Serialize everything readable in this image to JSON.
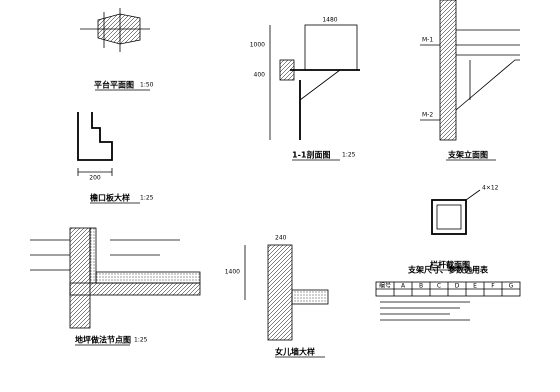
{
  "drawings": [
    {
      "title": "平台平面图",
      "scale": "1:50"
    },
    {
      "title": "檐口板大样",
      "scale": "1:25",
      "labels": [
        "200"
      ]
    },
    {
      "title": "1-1剖面图",
      "scale": "1:25",
      "labels": [
        "1000",
        "400",
        "1480"
      ]
    },
    {
      "title": "支架立面图",
      "labels": [
        "M-1",
        "M-2"
      ]
    },
    {
      "title": "栏杆截面图",
      "labels": [
        "4×12"
      ]
    },
    {
      "title": "地坪做法节点图",
      "scale": "1:25"
    },
    {
      "title": "女儿墙大样",
      "labels": [
        "240",
        "1400"
      ]
    }
  ],
  "table": {
    "title": "支架尺寸、参数选用表",
    "header": [
      "编号",
      "A",
      "B",
      "C",
      "D",
      "E",
      "F",
      "G"
    ]
  }
}
